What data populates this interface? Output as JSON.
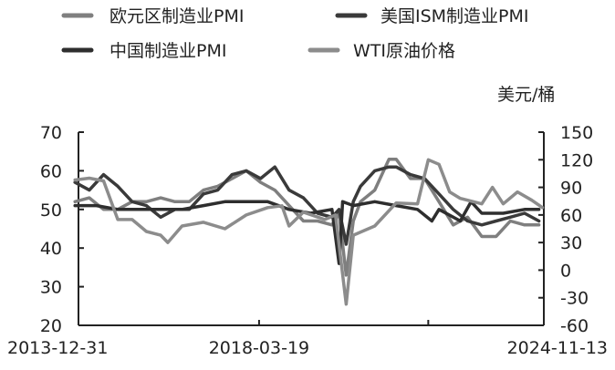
{
  "chart_data": {
    "type": "line",
    "y_unit_right": "美元/桶",
    "legend": [
      {
        "name": "欧元区制造业PMI",
        "color": "#7f7f7f"
      },
      {
        "name": "美国ISM制造业PMI",
        "color": "#3a3a3a"
      },
      {
        "name": "中国制造业PMI",
        "color": "#2e2e2e"
      },
      {
        "name": "WTI原油价格",
        "color": "#8c8c8c"
      }
    ],
    "x_ticks": [
      "2013-12-31",
      "2018-03-19",
      "2024-11-13"
    ],
    "x_range": [
      "2013-12-31",
      "2024-11-13"
    ],
    "y_left": {
      "range": [
        20,
        70
      ],
      "ticks": [
        20,
        30,
        40,
        50,
        60,
        70
      ]
    },
    "y_right": {
      "range": [
        -60,
        150
      ],
      "ticks": [
        -60,
        -30,
        0,
        30,
        60,
        90,
        120,
        150
      ]
    },
    "series": [
      {
        "name": "欧元区制造业PMI",
        "axis": "left",
        "color": "#7f7f7f",
        "x": [
          "2013-12",
          "2014-04",
          "2014-08",
          "2014-12",
          "2015-04",
          "2015-08",
          "2015-12",
          "2016-04",
          "2016-08",
          "2016-12",
          "2017-04",
          "2017-08",
          "2017-12",
          "2018-04",
          "2018-08",
          "2018-12",
          "2019-04",
          "2019-08",
          "2019-12",
          "2020-02",
          "2020-04",
          "2020-06",
          "2020-08",
          "2020-12",
          "2021-04",
          "2021-06",
          "2021-10",
          "2022-02",
          "2022-06",
          "2022-10",
          "2023-02",
          "2023-06",
          "2023-10",
          "2024-02",
          "2024-06",
          "2024-10"
        ],
        "y": [
          52,
          53,
          50,
          50,
          52,
          52,
          53,
          52,
          52,
          55,
          56,
          58,
          60,
          57,
          55,
          51,
          47,
          47,
          46,
          49,
          33,
          47,
          52,
          55,
          63,
          63,
          58,
          58,
          52,
          46,
          48,
          43,
          43,
          47,
          46,
          46
        ]
      },
      {
        "name": "美国ISM制造业PMI",
        "axis": "left",
        "color": "#3a3a3a",
        "x": [
          "2013-12",
          "2014-04",
          "2014-08",
          "2014-12",
          "2015-04",
          "2015-08",
          "2015-12",
          "2016-04",
          "2016-08",
          "2016-12",
          "2017-04",
          "2017-08",
          "2017-12",
          "2018-04",
          "2018-08",
          "2018-12",
          "2019-04",
          "2019-08",
          "2019-12",
          "2020-02",
          "2020-04",
          "2020-06",
          "2020-08",
          "2020-12",
          "2021-04",
          "2021-06",
          "2021-10",
          "2022-02",
          "2022-06",
          "2022-10",
          "2023-02",
          "2023-06",
          "2023-10",
          "2024-02",
          "2024-06",
          "2024-10"
        ],
        "y": [
          57,
          55,
          59,
          56,
          52,
          51,
          48,
          50,
          50,
          54,
          55,
          59,
          60,
          58,
          61,
          55,
          53,
          49,
          48,
          50,
          41,
          52,
          56,
          60,
          61,
          61,
          59,
          58,
          54,
          50,
          47,
          46,
          47,
          48,
          49,
          47
        ]
      },
      {
        "name": "中国制造业PMI",
        "axis": "left",
        "color": "#2e2e2e",
        "x": [
          "2013-12",
          "2014-06",
          "2014-12",
          "2015-06",
          "2015-12",
          "2016-06",
          "2016-12",
          "2017-06",
          "2017-12",
          "2018-06",
          "2018-12",
          "2019-06",
          "2019-12",
          "2020-02",
          "2020-03",
          "2020-06",
          "2020-12",
          "2021-06",
          "2021-12",
          "2022-04",
          "2022-06",
          "2022-12",
          "2023-03",
          "2023-06",
          "2023-12",
          "2024-06",
          "2024-10"
        ],
        "y": [
          51,
          51,
          50,
          50,
          50,
          50,
          51,
          52,
          52,
          52,
          50,
          49,
          50,
          36,
          52,
          51,
          52,
          51,
          50,
          47,
          50,
          47,
          52,
          49,
          49,
          50,
          50
        ]
      },
      {
        "name": "WTI原油价格",
        "axis": "right",
        "color": "#8c8c8c",
        "x": [
          "2013-12",
          "2014-04",
          "2014-08",
          "2014-12",
          "2015-04",
          "2015-08",
          "2015-12",
          "2016-02",
          "2016-06",
          "2016-12",
          "2017-06",
          "2017-12",
          "2018-06",
          "2018-10",
          "2018-12",
          "2019-04",
          "2019-10",
          "2020-01",
          "2020-04",
          "2020-06",
          "2020-12",
          "2021-06",
          "2021-12",
          "2022-03",
          "2022-06",
          "2022-09",
          "2022-12",
          "2023-06",
          "2023-09",
          "2023-12",
          "2024-04",
          "2024-08",
          "2024-11"
        ],
        "y": [
          98,
          100,
          97,
          55,
          55,
          42,
          38,
          30,
          48,
          52,
          45,
          60,
          68,
          70,
          48,
          63,
          55,
          60,
          -37,
          38,
          48,
          73,
          72,
          120,
          115,
          85,
          78,
          72,
          90,
          72,
          85,
          76,
          68
        ]
      }
    ]
  }
}
